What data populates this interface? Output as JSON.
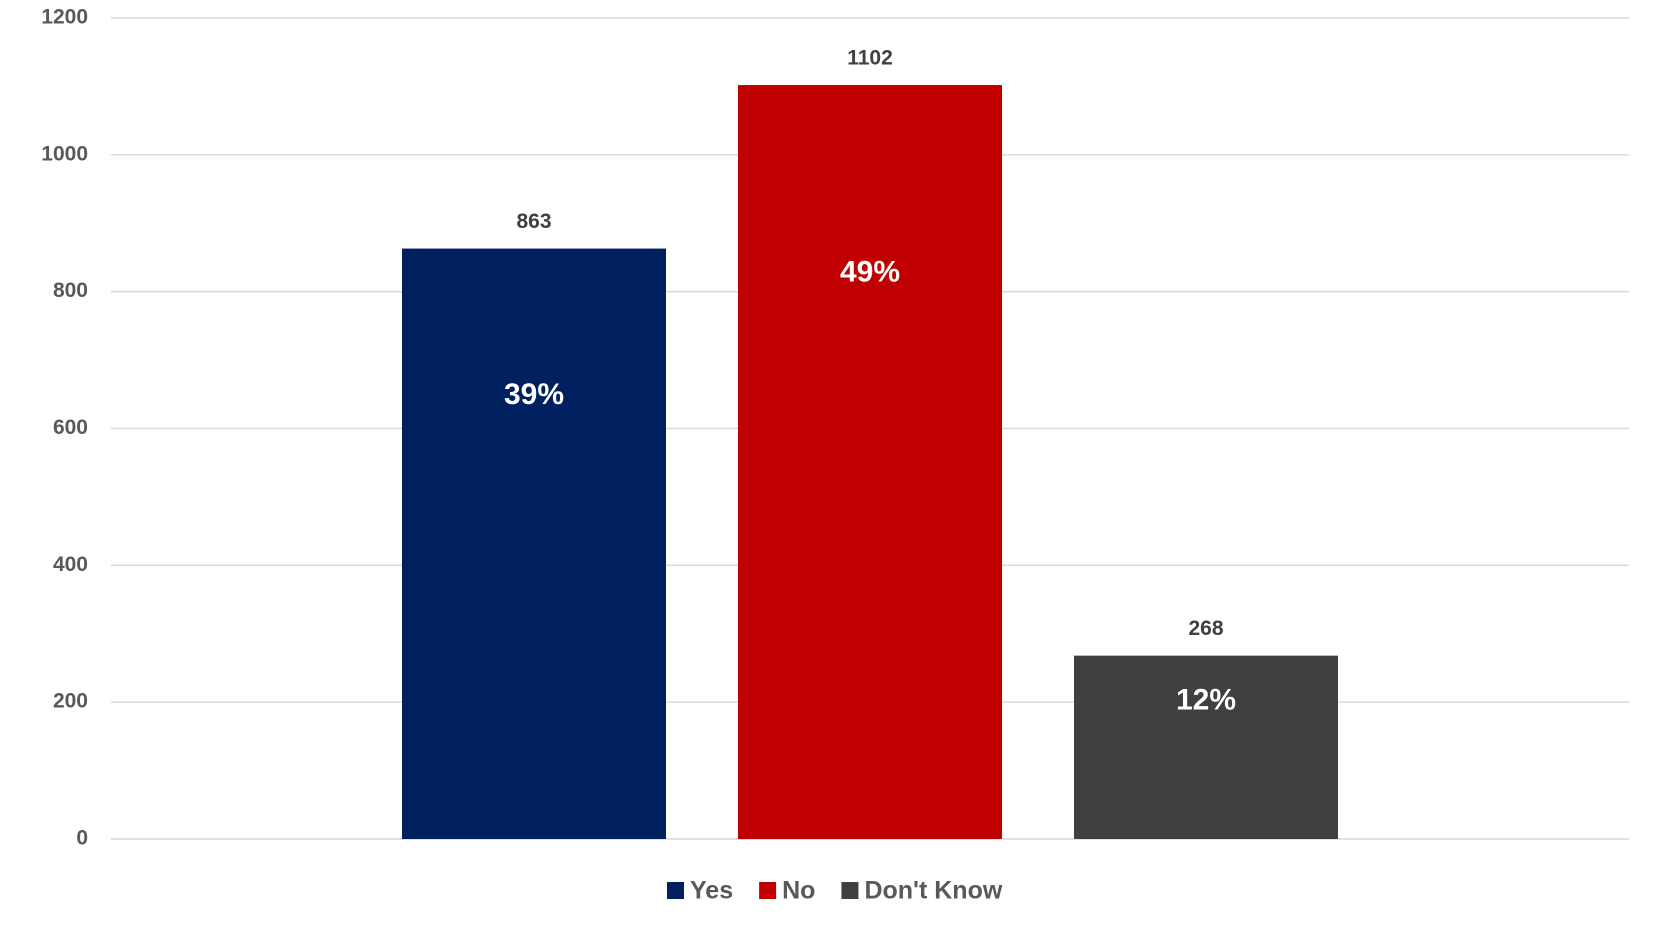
{
  "chart_data": {
    "type": "bar",
    "categories": [
      null
    ],
    "series": [
      {
        "name": "Yes",
        "color": "#002060",
        "values": [
          863
        ],
        "share_labels": [
          "39%"
        ]
      },
      {
        "name": "No",
        "color": "#c00000",
        "values": [
          1102
        ],
        "share_labels": [
          "49%"
        ]
      },
      {
        "name": "Don't Know",
        "color": "#404040",
        "values": [
          268
        ],
        "share_labels": [
          "12%"
        ]
      }
    ],
    "ylim": [
      0,
      1200
    ],
    "yticks": [
      0,
      200,
      400,
      600,
      800,
      1000,
      1200
    ],
    "grid": true,
    "legend": "bottom"
  }
}
